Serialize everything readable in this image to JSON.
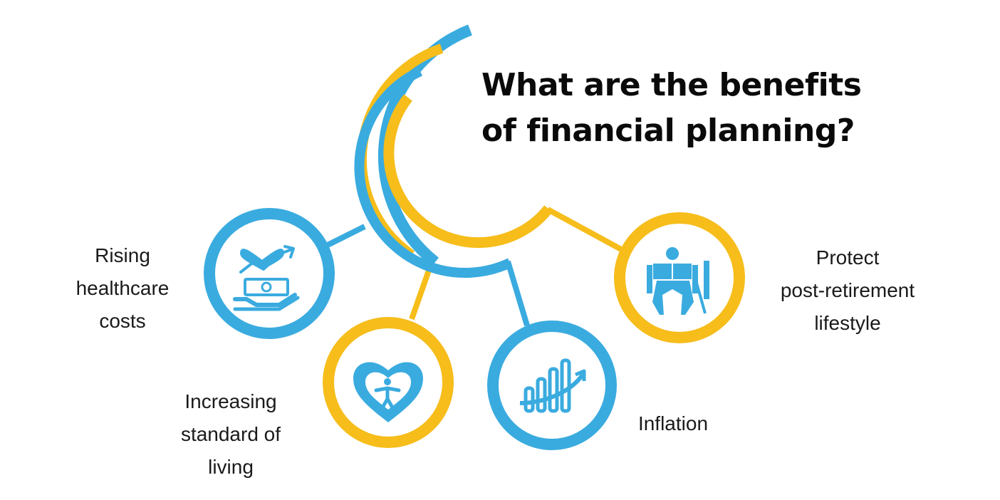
{
  "title": {
    "line1": "What are the benefits",
    "line2": "of financial planning?"
  },
  "colors": {
    "blue": "#3aabdf",
    "yellow": "#f6bd1b",
    "text": "#1a1a1a"
  },
  "benefits": [
    {
      "lines": [
        "Rising",
        "healthcare",
        "costs"
      ],
      "icon": "hand-money-heart-icon",
      "ring_color": "blue"
    },
    {
      "lines": [
        "Increasing",
        "standard of",
        "living"
      ],
      "icon": "heart-person-icon",
      "ring_color": "yellow"
    },
    {
      "lines": [
        "Inflation"
      ],
      "icon": "rising-bars-icon",
      "ring_color": "blue"
    },
    {
      "lines": [
        "Protect",
        "post-retirement",
        "lifestyle"
      ],
      "icon": "elderly-reading-icon",
      "ring_color": "yellow"
    }
  ]
}
